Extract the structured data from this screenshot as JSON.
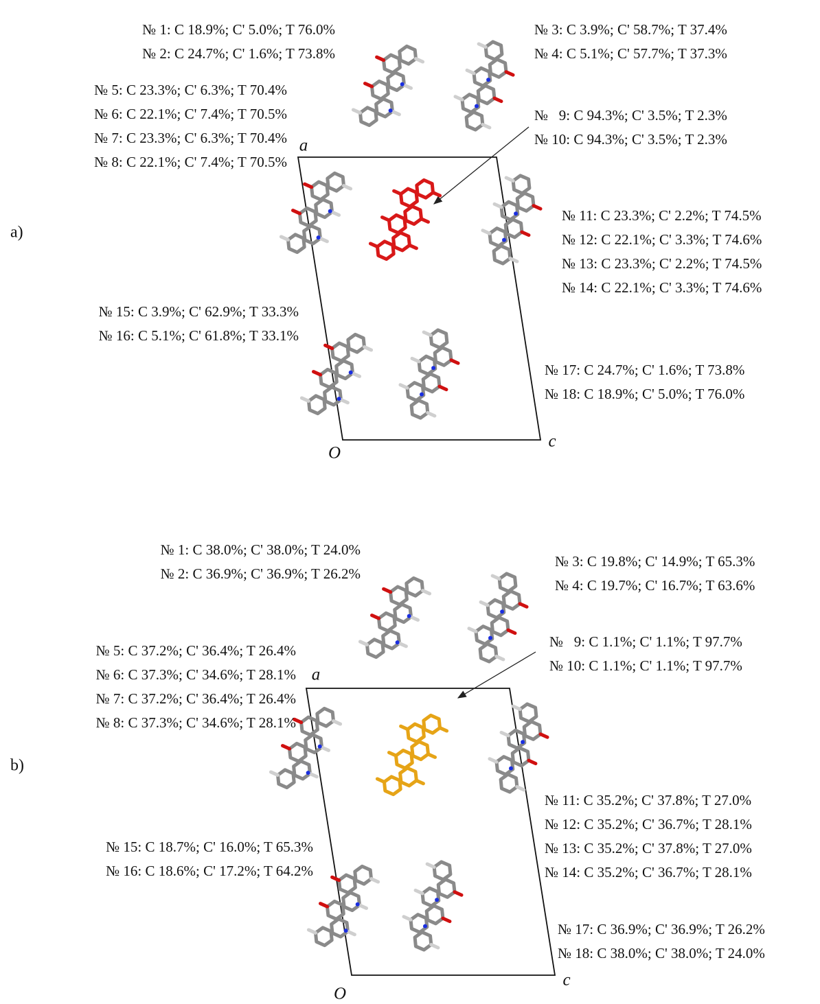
{
  "panels": [
    {
      "label": "a)",
      "axis_a": "a",
      "axis_c": "c",
      "origin": "O",
      "annotations": [
        {
          "lines": [
            "№ 1: C 18.9%; C' 5.0%; T 76.0%",
            "№ 2: C 24.7%; C' 1.6%; T 73.8%"
          ]
        },
        {
          "lines": [
            "№ 3: C 3.9%; C' 58.7%; T 37.4%",
            "№ 4: C 5.1%; C' 57.7%; T 37.3%"
          ]
        },
        {
          "lines": [
            "№ 5: C 23.3%; C' 6.3%; T 70.4%",
            "№ 6: C 22.1%; C' 7.4%; T 70.5%",
            "№ 7: C 23.3%; C' 6.3%; T 70.4%",
            "№ 8: C 22.1%; C' 7.4%; T 70.5%"
          ]
        },
        {
          "lines": [
            "№   9: C 94.3%; C' 3.5%; T 2.3%",
            "№ 10: C 94.3%; C' 3.5%; T 2.3%"
          ]
        },
        {
          "lines": [
            "№ 11: C 23.3%; C' 2.2%; T 74.5%",
            "№ 12: C 22.1%; C' 3.3%; T 74.6%",
            "№ 13: C 23.3%; C' 2.2%; T 74.5%",
            "№ 14: C 22.1%; C' 3.3%; T 74.6%"
          ]
        },
        {
          "lines": [
            "№ 15: C 3.9%; C' 62.9%; T 33.3%",
            "№ 16: C 5.1%; C' 61.8%; T 33.1%"
          ]
        },
        {
          "lines": [
            "№ 17: C 24.7%; C' 1.6%; T 73.8%",
            "№ 18: C 18.9%; C' 5.0%; T 76.0%"
          ]
        }
      ]
    },
    {
      "label": "b)",
      "axis_a": "a",
      "axis_c": "c",
      "origin": "O",
      "annotations": [
        {
          "lines": [
            "№ 1: C 38.0%; C' 38.0%; T 24.0%",
            "№ 2: C 36.9%; C' 36.9%; T 26.2%"
          ]
        },
        {
          "lines": [
            "№ 3: C 19.8%; C' 14.9%; T 65.3%",
            "№ 4: C 19.7%; C' 16.7%; T 63.6%"
          ]
        },
        {
          "lines": [
            "№ 5: C 37.2%; C' 36.4%; T 26.4%",
            "№ 6: C 37.3%; C' 34.6%; T 28.1%",
            "№ 7: C 37.2%; C' 36.4%; T 26.4%",
            "№ 8: C 37.3%; C' 34.6%; T 28.1%"
          ]
        },
        {
          "lines": [
            "№   9: C 1.1%; C' 1.1%; T 97.7%",
            "№ 10: C 1.1%; C' 1.1%; T 97.7%"
          ]
        },
        {
          "lines": [
            "№ 11: C 35.2%; C' 37.8%; T 27.0%",
            "№ 12: C 35.2%; C' 36.7%; T 28.1%",
            "№ 13: C 35.2%; C' 37.8%; T 27.0%",
            "№ 14: C 35.2%; C' 36.7%; T 28.1%"
          ]
        },
        {
          "lines": [
            "№ 15: C 18.7%; C' 16.0%; T 65.3%",
            "№ 16: C 18.6%; C' 17.2%; T 64.2%"
          ]
        },
        {
          "lines": [
            "№ 17: C 36.9%; C' 36.9%; T 26.2%",
            "№ 18: C 38.0%; C' 38.0%; T 24.0%"
          ]
        }
      ]
    }
  ]
}
